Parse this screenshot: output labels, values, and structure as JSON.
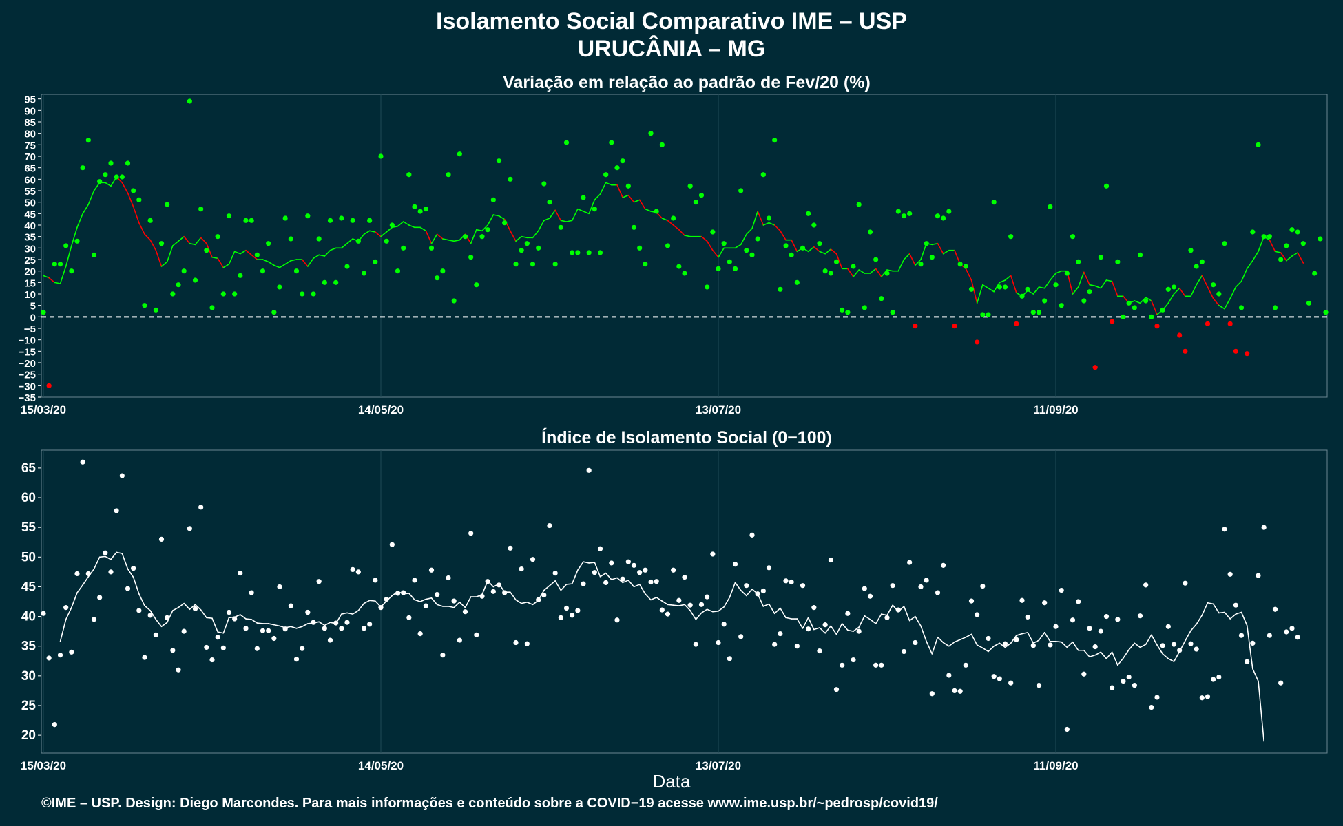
{
  "title_line1": "Isolamento Social Comparativo IME – USP",
  "title_line2": "URUCÂNIA – MG",
  "footer": "©IME – USP. Design: Diego Marcondes. Para mais informações e conteúdo sobre a COVID−19 acesse www.ime.usp.br/~pedrosp/covid19/",
  "colors": {
    "background": "#012a36",
    "positive": "#00ff00",
    "negative": "#ff0000",
    "index": "#ffffff",
    "grid": "#1f4a55"
  },
  "chart_data": [
    {
      "type": "scatter",
      "title": "Variação em relação ao padrão de Fev/20 (%)",
      "xlabel": "",
      "ylabel": "",
      "x_start": "15/03/20",
      "x_end": "20/10/20",
      "x_ticks": [
        "15/03/20",
        "14/05/20",
        "13/07/20",
        "11/09/20"
      ],
      "ylim": [
        -35,
        97
      ],
      "y_ticks": [
        95,
        90,
        85,
        80,
        75,
        70,
        65,
        60,
        55,
        50,
        45,
        40,
        35,
        30,
        25,
        20,
        15,
        10,
        5,
        0,
        -5,
        -10,
        -15,
        -20,
        -25,
        -30,
        -35
      ],
      "reference_line": 0,
      "series": [
        {
          "values": [
            2,
            -30,
            23,
            23,
            31,
            20,
            33,
            65,
            77,
            27,
            59,
            62,
            67,
            61,
            61,
            67,
            55,
            51,
            5,
            42,
            3,
            32,
            49,
            10,
            14,
            20,
            94,
            16,
            47,
            29,
            4,
            35,
            10,
            44,
            10,
            18,
            42,
            42,
            27,
            20,
            32,
            2,
            13,
            43,
            34,
            20,
            10,
            44,
            10,
            34,
            15,
            42,
            15,
            43,
            22,
            42,
            33,
            19,
            42,
            24,
            70,
            33,
            40,
            20,
            30,
            62,
            48,
            46,
            47,
            30,
            17,
            20,
            62,
            7,
            71,
            35,
            26,
            14,
            35,
            38,
            51,
            68,
            41,
            60,
            23,
            29,
            32,
            23,
            30,
            58,
            50,
            23,
            39,
            76,
            28,
            28,
            52,
            28,
            47,
            28,
            62,
            76,
            65,
            68,
            57,
            39,
            30,
            23,
            80,
            46,
            75,
            31,
            43,
            22,
            19,
            57,
            50,
            53,
            13,
            37,
            21,
            32,
            24,
            21,
            55,
            29,
            27,
            34,
            62,
            43,
            77,
            12,
            31,
            27,
            15,
            30,
            45,
            40,
            32,
            20,
            19,
            24,
            3,
            2,
            22,
            49,
            4,
            37,
            25,
            8,
            19,
            2,
            46,
            44,
            45,
            -4,
            23,
            32,
            26,
            44,
            43,
            46,
            -4,
            23,
            22,
            12,
            -11,
            1,
            1,
            50,
            13,
            13,
            35,
            -3,
            9,
            12,
            2,
            2,
            7,
            48,
            14,
            5,
            19,
            35,
            24,
            7,
            11,
            -22,
            26,
            57,
            -2,
            24,
            0,
            6,
            4,
            27,
            7,
            0,
            -4,
            3,
            12,
            13,
            -8,
            -15,
            29,
            22,
            24,
            -3,
            14,
            10,
            32,
            -3,
            -15,
            4,
            -16,
            37,
            75,
            35,
            35,
            4,
            25,
            31,
            38,
            37,
            32,
            6,
            19,
            34,
            2
          ]
        },
        {
          "name": "media movel",
          "values": [
            18.0,
            17.0,
            15.0,
            14.5,
            22.0,
            31.0,
            39.0,
            45.0,
            49.0,
            55.0,
            58.5,
            58.5,
            57.0,
            61.0,
            58.5,
            54.0,
            48.0,
            41.0,
            36.0,
            33.5,
            29.0,
            22.0,
            24.0,
            31.0,
            33.0,
            35.0,
            32.0,
            31.5,
            34.5,
            32.0,
            26.0,
            25.5,
            21.5,
            23.0,
            28.5,
            27.5,
            29.0,
            27.0,
            25.0,
            25.0,
            24.0,
            22.5,
            21.5,
            23.0,
            24.5,
            25.0,
            25.0,
            22.0,
            25.5,
            27.0,
            26.5,
            29.0,
            30.0,
            30.0,
            32.0,
            34.0,
            33.0,
            36.0,
            37.5,
            37.0,
            35.0,
            37.0,
            39.0,
            39.5,
            41.5,
            40.0,
            39.0,
            39.0,
            37.5,
            32.0,
            36.0,
            34.0,
            33.5,
            33.0,
            33.5,
            36.0,
            32.0,
            38.0,
            37.5,
            40.0,
            44.5,
            44.0,
            42.5,
            37.5,
            33.0,
            35.0,
            34.5,
            34.5,
            37.5,
            42.0,
            43.0,
            46.5,
            42.0,
            41.5,
            42.0,
            47.0,
            46.0,
            45.0,
            51.0,
            53.5,
            58.5,
            57.5,
            57.5,
            52.0,
            53.0,
            50.0,
            51.0,
            47.0,
            46.0,
            45.5,
            43.0,
            42.0,
            40.0,
            38.0,
            35.5,
            35.0,
            35.0,
            35.0,
            33.0,
            29.0,
            26.0,
            30.0,
            30.0,
            30.0,
            31.5,
            36.0,
            38.5,
            46.0,
            40.0,
            41.0,
            40.0,
            37.5,
            33.5,
            33.5,
            28.5,
            30.0,
            28.5,
            30.5,
            28.5,
            27.5,
            29.5,
            27.5,
            21.0,
            21.0,
            17.5,
            20.5,
            19.0,
            19.0,
            21.0,
            17.5,
            20.5,
            20.0,
            20.0,
            25.0,
            27.5,
            22.5,
            25.0,
            32.0,
            31.5,
            32.0,
            27.5,
            29.0,
            29.0,
            23.0,
            21.0,
            16.0,
            6.0,
            14.0,
            12.5,
            11.0,
            15.0,
            16.0,
            18.0,
            10.5,
            9.0,
            11.5,
            10.0,
            13.0,
            12.5,
            16.0,
            19.0,
            20.0,
            20.0,
            10.0,
            13.0,
            19.5,
            14.0,
            13.5,
            12.5,
            16.0,
            15.5,
            9.0,
            9.0,
            6.0,
            7.0,
            6.0,
            8.5,
            7.0,
            1.0,
            3.0,
            6.0,
            10.0,
            12.5,
            9.0,
            9.0,
            14.0,
            18.0,
            13.0,
            8.0,
            5.0,
            3.5,
            8.0,
            13.0,
            15.5,
            21.0,
            24.5,
            28.5,
            35.0,
            33.5,
            28.5,
            28.0,
            24.5,
            26.5,
            28.0,
            23.5
          ]
        }
      ]
    },
    {
      "type": "scatter",
      "title": "Índice de Isolamento Social (0−100)",
      "xlabel": "Data",
      "ylabel": "",
      "x_start": "15/03/20",
      "x_end": "20/10/20",
      "x_ticks": [
        "15/03/20",
        "14/05/20",
        "13/07/20",
        "11/09/20"
      ],
      "ylim": [
        17,
        68
      ],
      "y_ticks": [
        65,
        60,
        55,
        50,
        45,
        40,
        35,
        30,
        25,
        20
      ],
      "series": [
        {
          "values": [
            40.5,
            33.0,
            21.8,
            33.5,
            41.5,
            34.0,
            47.2,
            66.0,
            47.2,
            39.5,
            43.2,
            50.7,
            47.5,
            57.8,
            63.7,
            44.7,
            48.1,
            41.0,
            33.1,
            40.2,
            36.9,
            53.0,
            39.8,
            34.3,
            31.0,
            37.5,
            54.8,
            41.3,
            58.4,
            34.8,
            32.7,
            36.5,
            34.7,
            40.7,
            39.6,
            47.3,
            38.0,
            44.0,
            34.6,
            37.6,
            37.6,
            36.3,
            45.0,
            37.9,
            41.8,
            32.8,
            34.6,
            40.7,
            39.0,
            45.9,
            38.0,
            36.0,
            38.9,
            38.0,
            39.0,
            47.9,
            47.5,
            38.0,
            38.7,
            46.1,
            41.5,
            42.9,
            52.1,
            43.9,
            44.0,
            39.8,
            46.1,
            37.1,
            41.8,
            47.8,
            43.7,
            33.5,
            46.5,
            42.6,
            36.0,
            40.8,
            54.0,
            36.9,
            43.4,
            45.9,
            44.2,
            45.3,
            44.0,
            51.5,
            35.6,
            48.0,
            35.4,
            49.6,
            42.8,
            43.6,
            55.3,
            47.3,
            39.8,
            41.4,
            40.2,
            41.0,
            45.5,
            64.6,
            47.4,
            51.4,
            45.7,
            49.0,
            39.4,
            46.3,
            49.2,
            48.6,
            47.4,
            47.8,
            45.8,
            45.9,
            41.1,
            40.4,
            47.8,
            42.7,
            46.6,
            41.9,
            35.3,
            42.0,
            43.3,
            50.5,
            35.6,
            38.7,
            32.9,
            48.8,
            36.6,
            45.2,
            53.7,
            43.8,
            44.3,
            48.2,
            35.3,
            37.1,
            46.0,
            45.8,
            35.0,
            45.2,
            37.9,
            41.5,
            34.2,
            38.6,
            49.5,
            27.7,
            31.8,
            40.5,
            32.7,
            37.5,
            44.7,
            43.4,
            31.8,
            31.8,
            39.8,
            45.2,
            41.1,
            34.1,
            49.1,
            35.6,
            45.0,
            46.1,
            27.0,
            44.0,
            48.6,
            30.1,
            27.5,
            27.4,
            31.8,
            42.6,
            40.3,
            45.1,
            36.3,
            29.9,
            29.5,
            35.4,
            28.8,
            36.1,
            42.7,
            39.9,
            35.1,
            28.4,
            42.3,
            35.2,
            38.3,
            44.4,
            21.0,
            39.4,
            42.5,
            30.3,
            38.0,
            34.9,
            37.5,
            40.0,
            28.0,
            39.5,
            29.1,
            29.8,
            28.4,
            40.1,
            45.3,
            24.7,
            26.4,
            35.1,
            38.3,
            35.3,
            34.3,
            45.6,
            35.4,
            34.5,
            26.3,
            26.5,
            29.4,
            29.8,
            54.7,
            47.1,
            41.9,
            36.8,
            32.4,
            35.5,
            46.9,
            55.0,
            36.8,
            41.2,
            28.8,
            37.4,
            38.0,
            36.5
          ]
        },
        {
          "name": "media movel",
          "values": [
            null,
            null,
            null,
            35.8,
            39.5,
            41.5,
            44.0,
            45.3,
            46.7,
            48.0,
            50.0,
            50.1,
            49.6,
            50.8,
            50.6,
            48.0,
            46.6,
            43.8,
            41.8,
            41.0,
            39.5,
            38.3,
            39.0,
            41.0,
            41.5,
            42.2,
            41.2,
            42.0,
            41.1,
            39.8,
            39.7,
            37.4,
            37.2,
            39.8,
            39.9,
            40.3,
            39.6,
            39.5,
            38.9,
            38.8,
            38.8,
            38.6,
            38.4,
            38.1,
            38.3,
            38.0,
            38.3,
            38.8,
            38.9,
            39.1,
            38.5,
            39.0,
            38.8,
            40.4,
            40.6,
            40.4,
            41.0,
            42.2,
            42.7,
            42.6,
            41.6,
            42.6,
            43.5,
            44.2,
            43.8,
            43.9,
            42.8,
            42.5,
            42.9,
            43.1,
            42.0,
            41.7,
            41.7,
            41.5,
            42.4,
            41.5,
            43.3,
            43.3,
            43.7,
            46.0,
            45.0,
            45.5,
            44.1,
            44.1,
            42.8,
            42.2,
            42.4,
            42.0,
            42.7,
            44.4,
            45.2,
            46.0,
            44.4,
            45.4,
            45.5,
            47.8,
            49.2,
            49.0,
            49.1,
            46.7,
            47.3,
            46.2,
            46.5,
            45.7,
            46.1,
            45.0,
            45.4,
            43.8,
            42.8,
            43.2,
            42.6,
            42.0,
            41.9,
            41.8,
            42.0,
            41.0,
            39.5,
            40.6,
            41.2,
            40.8,
            40.9,
            41.6,
            43.2,
            45.7,
            44.4,
            43.5,
            44.6,
            43.8,
            41.7,
            42.1,
            40.5,
            41.4,
            39.8,
            39.6,
            39.6,
            38.0,
            39.8,
            37.8,
            38.1,
            37.2,
            38.4,
            37.0,
            38.8,
            37.7,
            37.5,
            38.2,
            40.1,
            39.5,
            38.8,
            40.4,
            40.2,
            41.9,
            40.8,
            41.7,
            39.3,
            40.0,
            38.4,
            35.8,
            33.7,
            36.5,
            35.6,
            35.0,
            35.7,
            36.1,
            36.5,
            37.0,
            35.2,
            34.7,
            34.1,
            35.0,
            35.5,
            34.8,
            35.5,
            36.8,
            37.1,
            37.3,
            35.5,
            36.0,
            37.3,
            35.8,
            35.8,
            35.7,
            34.8,
            35.7,
            34.3,
            34.3,
            33.2,
            33.5,
            34.0,
            32.9,
            34.0,
            31.8,
            33.0,
            34.4,
            35.5,
            34.8,
            35.3,
            36.9,
            35.2,
            33.7,
            32.9,
            32.4,
            34.1,
            35.9,
            37.6,
            38.7,
            40.2,
            42.3,
            42.1,
            40.6,
            40.7,
            39.6,
            40.4,
            40.7,
            38.5,
            31.2,
            29.1,
            19.0
          ]
        }
      ]
    }
  ]
}
